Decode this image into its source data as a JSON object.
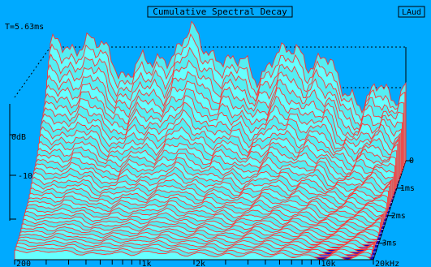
{
  "app": {
    "title": "Cumulative Spectral Decay",
    "badge": "LAud",
    "readout": "T=5.63ms"
  },
  "colors": {
    "background": "#00aaff",
    "surface": "#66ffff",
    "surface_shade": "#55eef2",
    "trace": "#ff3333",
    "floor": "#1010c0",
    "floor_lines": "#88aaff",
    "ink": "#000000"
  },
  "chart_data": {
    "type": "waterfall",
    "title": "Cumulative Spectral Decay",
    "x_axis": {
      "scale": "log",
      "range_hz": [
        200,
        20000
      ],
      "tick_labels": [
        "200",
        "1k",
        "2k",
        "10k",
        "20kHz"
      ],
      "tick_values_hz": [
        200,
        1000,
        2000,
        10000,
        20000
      ]
    },
    "y_axis": {
      "unit_label": "0dB",
      "tick_labels": [
        "-10"
      ]
    },
    "time_axis": {
      "tick_labels": [
        "0",
        "1ms",
        "2ms",
        "3ms"
      ],
      "tick_values_ms": [
        0,
        1,
        2,
        3
      ],
      "max_ms": 5.63
    },
    "slice_count": 40,
    "grid": true
  }
}
